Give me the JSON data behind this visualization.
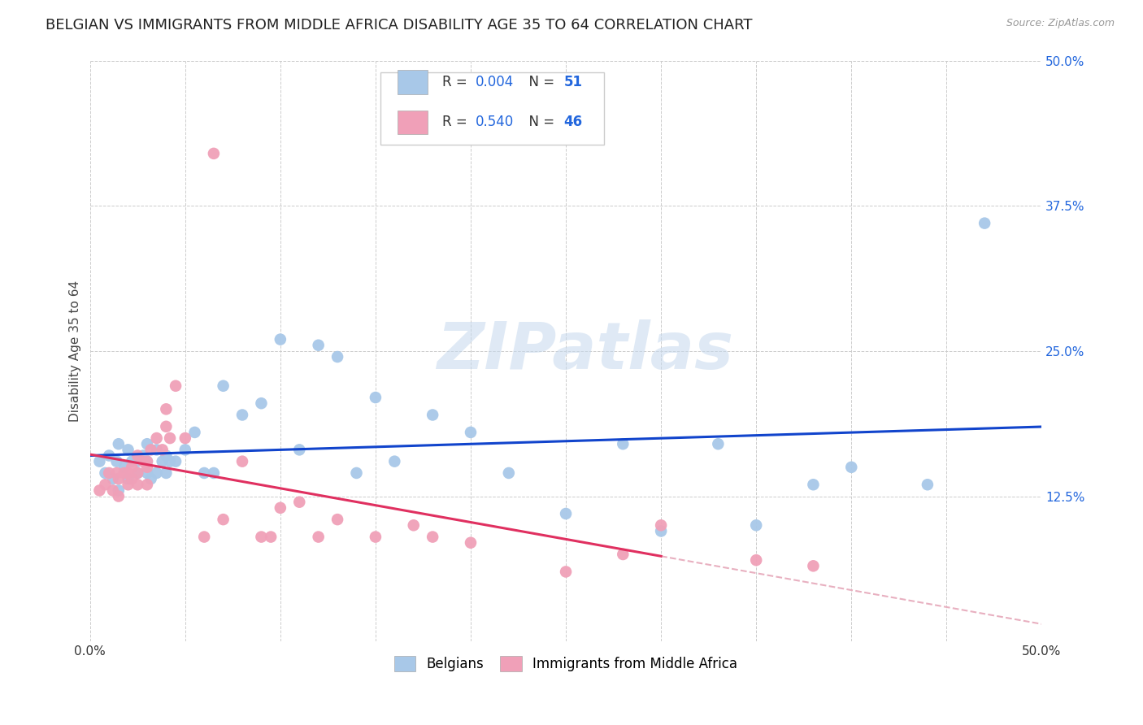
{
  "title": "BELGIAN VS IMMIGRANTS FROM MIDDLE AFRICA DISABILITY AGE 35 TO 64 CORRELATION CHART",
  "source": "Source: ZipAtlas.com",
  "ylabel": "Disability Age 35 to 64",
  "xmin": 0.0,
  "xmax": 0.5,
  "ymin": 0.0,
  "ymax": 0.5,
  "belgian_color": "#a8c8e8",
  "immigrant_color": "#f0a0b8",
  "belgian_line_color": "#1144cc",
  "immigrant_line_color": "#e03060",
  "immigrant_dash_color": "#e8b0c0",
  "legend_label_belgian": "Belgians",
  "legend_label_immigrant": "Immigrants from Middle Africa",
  "watermark_text": "ZIPatlas",
  "belgian_R": "0.004",
  "belgian_N": "51",
  "immigrant_R": "0.540",
  "immigrant_N": "46",
  "r_n_color": "#2266dd",
  "belgian_scatter_x": [
    0.005,
    0.008,
    0.01,
    0.012,
    0.014,
    0.015,
    0.015,
    0.018,
    0.02,
    0.02,
    0.022,
    0.025,
    0.025,
    0.028,
    0.03,
    0.03,
    0.03,
    0.032,
    0.035,
    0.035,
    0.038,
    0.04,
    0.04,
    0.042,
    0.045,
    0.05,
    0.055,
    0.06,
    0.065,
    0.07,
    0.08,
    0.09,
    0.1,
    0.11,
    0.12,
    0.13,
    0.14,
    0.15,
    0.16,
    0.18,
    0.2,
    0.22,
    0.25,
    0.28,
    0.3,
    0.33,
    0.35,
    0.38,
    0.4,
    0.44,
    0.47
  ],
  "belgian_scatter_y": [
    0.155,
    0.145,
    0.16,
    0.14,
    0.155,
    0.17,
    0.13,
    0.15,
    0.165,
    0.14,
    0.155,
    0.155,
    0.145,
    0.16,
    0.145,
    0.155,
    0.17,
    0.14,
    0.165,
    0.145,
    0.155,
    0.145,
    0.16,
    0.155,
    0.155,
    0.165,
    0.18,
    0.145,
    0.145,
    0.22,
    0.195,
    0.205,
    0.26,
    0.165,
    0.255,
    0.245,
    0.145,
    0.21,
    0.155,
    0.195,
    0.18,
    0.145,
    0.11,
    0.17,
    0.095,
    0.17,
    0.1,
    0.135,
    0.15,
    0.135,
    0.36
  ],
  "immigrant_scatter_x": [
    0.005,
    0.008,
    0.01,
    0.012,
    0.014,
    0.015,
    0.015,
    0.018,
    0.02,
    0.02,
    0.022,
    0.022,
    0.025,
    0.025,
    0.025,
    0.028,
    0.03,
    0.03,
    0.03,
    0.032,
    0.035,
    0.038,
    0.04,
    0.04,
    0.042,
    0.045,
    0.05,
    0.06,
    0.065,
    0.07,
    0.08,
    0.09,
    0.095,
    0.1,
    0.11,
    0.12,
    0.13,
    0.15,
    0.17,
    0.18,
    0.2,
    0.25,
    0.28,
    0.3,
    0.35,
    0.38
  ],
  "immigrant_scatter_y": [
    0.13,
    0.135,
    0.145,
    0.13,
    0.145,
    0.14,
    0.125,
    0.145,
    0.145,
    0.135,
    0.15,
    0.14,
    0.16,
    0.145,
    0.135,
    0.155,
    0.155,
    0.15,
    0.135,
    0.165,
    0.175,
    0.165,
    0.2,
    0.185,
    0.175,
    0.22,
    0.175,
    0.09,
    0.42,
    0.105,
    0.155,
    0.09,
    0.09,
    0.115,
    0.12,
    0.09,
    0.105,
    0.09,
    0.1,
    0.09,
    0.085,
    0.06,
    0.075,
    0.1,
    0.07,
    0.065
  ],
  "background_color": "#ffffff",
  "grid_color": "#cccccc",
  "title_fontsize": 13,
  "axis_label_fontsize": 11,
  "tick_fontsize": 11,
  "legend_fontsize": 12
}
